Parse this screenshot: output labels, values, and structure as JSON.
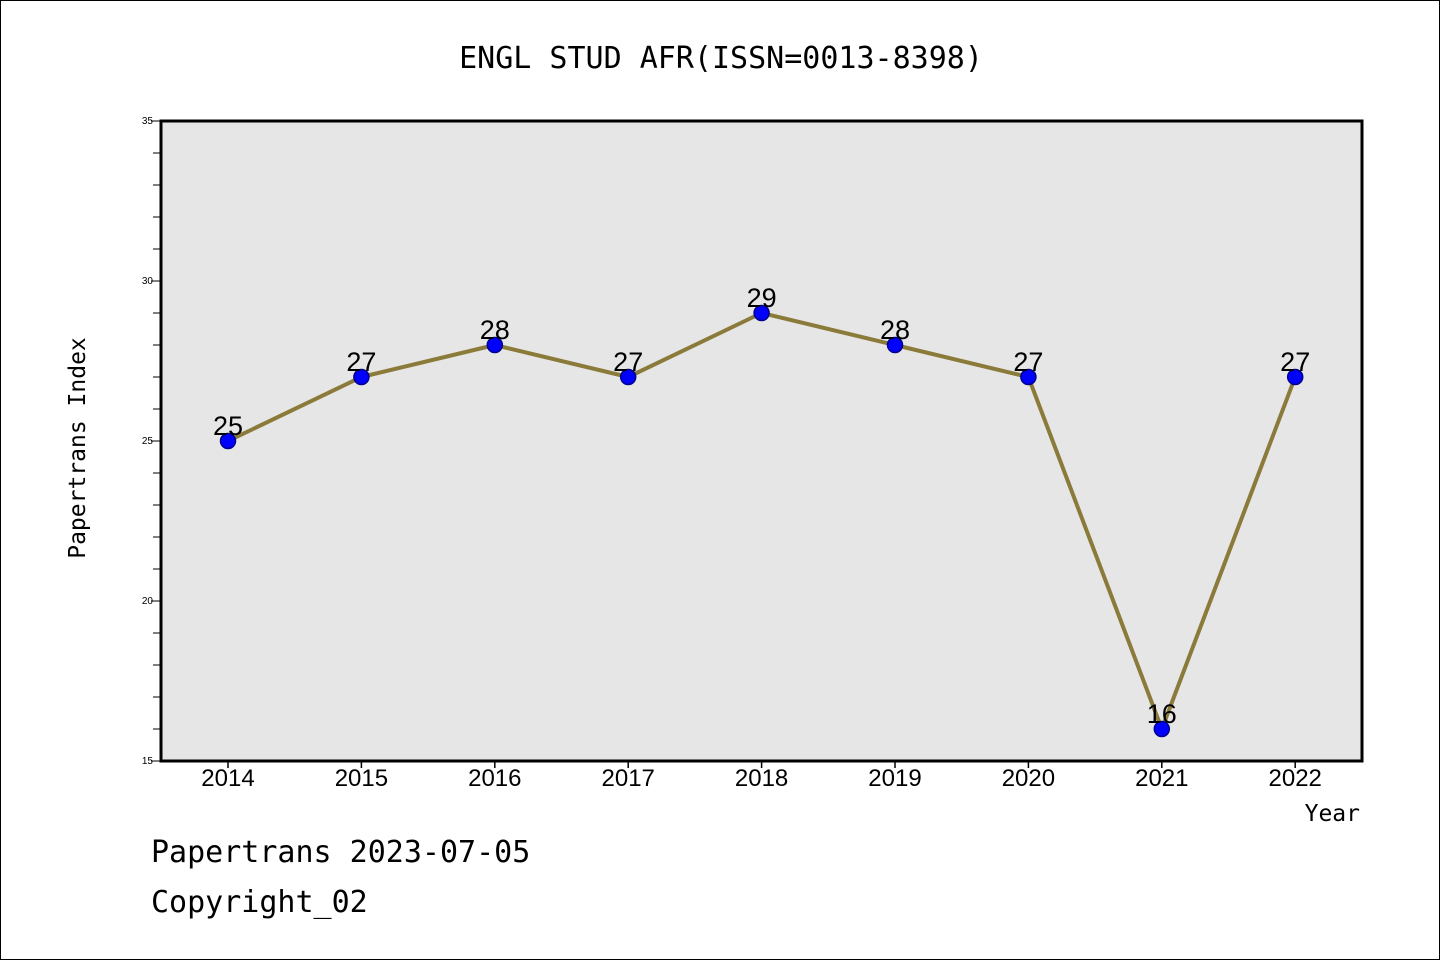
{
  "footer": {
    "line1": "Papertrans 2023-07-05",
    "line2": "Copyright_02"
  },
  "colors": {
    "plot_background": "#e6e6e6",
    "line": "#8b7b3a",
    "marker_fill": "#0000ff",
    "marker_edge": "#00008b",
    "frame": "#000000"
  },
  "chart_data": {
    "type": "line",
    "title": "ENGL STUD AFR(ISSN=0013-8398)",
    "xlabel": "Year",
    "ylabel": "Papertrans Index",
    "categories": [
      "2014",
      "2015",
      "2016",
      "2017",
      "2018",
      "2019",
      "2020",
      "2021",
      "2022"
    ],
    "values": [
      25,
      27,
      28,
      27,
      29,
      28,
      27,
      16,
      27
    ],
    "data_labels": [
      "25",
      "27",
      "28",
      "27",
      "29",
      "28",
      "27",
      "16",
      "27"
    ],
    "ylim": [
      15,
      35
    ],
    "yticks": [
      "15",
      "20",
      "25",
      "30",
      "35"
    ],
    "y_minor_step": 1,
    "grid": false,
    "legend": "none",
    "marker": "circle"
  }
}
